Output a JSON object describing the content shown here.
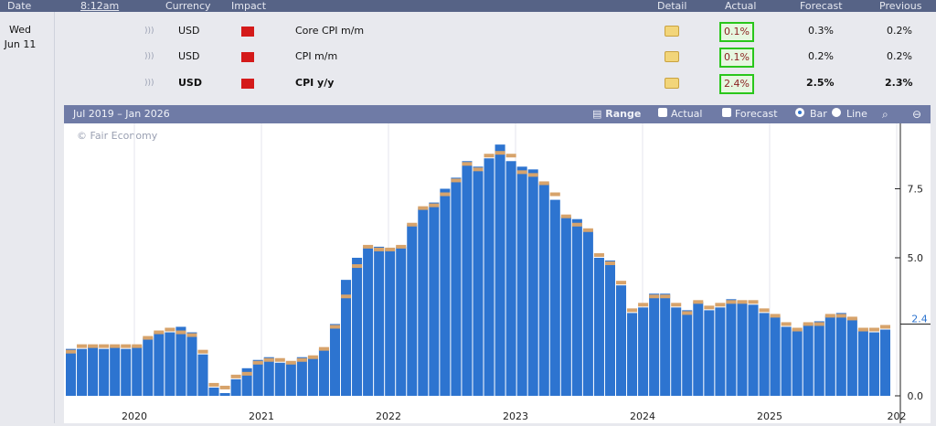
{
  "header": {
    "date": "Date",
    "time": "8:12am",
    "currency": "Currency",
    "impact": "Impact",
    "detail": "Detail",
    "actual": "Actual",
    "forecast": "Forecast",
    "previous": "Previous"
  },
  "day": {
    "weekday": "Wed",
    "date": "Jun 11"
  },
  "rows": [
    {
      "currency": "USD",
      "event": "Core CPI m/m",
      "actual": "0.1%",
      "forecast": "0.3%",
      "previous": "0.2%"
    },
    {
      "currency": "USD",
      "event": "CPI m/m",
      "actual": "0.1%",
      "forecast": "0.2%",
      "previous": "0.2%"
    },
    {
      "currency": "USD",
      "event": "CPI y/y",
      "actual": "2.4%",
      "forecast": "2.5%",
      "previous": "2.3%"
    }
  ],
  "chart_toolbar": {
    "range_text": "Jul 2019 – Jan 2026",
    "range_btn": "Range",
    "actual_label": "Actual",
    "forecast_label": "Forecast",
    "bar_label": "Bar",
    "line_label": "Line",
    "zoom_in_icon": "magnifier-icon",
    "zoom_out_icon": "zoom-out-icon"
  },
  "watermark": "© Fair Economy",
  "colors": {
    "actual": "#2d74d0",
    "forecast": "#d7a36b",
    "header": "#566386",
    "toolbar": "#6f7ba6",
    "highlight": "#29c61b"
  },
  "chart_data": {
    "type": "bar",
    "x_ticks": [
      "2020",
      "2021",
      "2022",
      "2023",
      "2024",
      "2025",
      "202"
    ],
    "y_ticks": [
      "0.0",
      "5.0",
      "7.5"
    ],
    "current_value_label": "2.4",
    "ylim": [
      0,
      9.8
    ],
    "series": [
      {
        "name": "Actual",
        "values": [
          1.7,
          1.7,
          1.8,
          1.7,
          1.8,
          1.7,
          1.8,
          2.1,
          2.3,
          2.3,
          2.5,
          2.3,
          1.5,
          0.3,
          0.1,
          0.6,
          1.0,
          1.3,
          1.4,
          1.2,
          1.2,
          1.4,
          1.4,
          1.7,
          2.6,
          4.2,
          5.0,
          5.4,
          5.4,
          5.3,
          5.4,
          6.2,
          6.8,
          7.0,
          7.5,
          7.9,
          8.5,
          8.3,
          8.6,
          9.1,
          8.5,
          8.3,
          8.2,
          7.7,
          7.1,
          6.5,
          6.4,
          6.0,
          5.0,
          4.9,
          4.0,
          3.0,
          3.2,
          3.7,
          3.7,
          3.2,
          3.1,
          3.4,
          3.1,
          3.2,
          3.5,
          3.4,
          3.3,
          3.0,
          2.9,
          2.5,
          2.4,
          2.6,
          2.7,
          2.9,
          3.0,
          2.8,
          2.4,
          2.3,
          2.4
        ]
      },
      {
        "name": "Forecast",
        "values": [
          1.6,
          1.8,
          1.8,
          1.8,
          1.8,
          1.8,
          1.8,
          2.1,
          2.3,
          2.4,
          2.3,
          2.2,
          1.6,
          0.4,
          0.3,
          0.7,
          0.8,
          1.2,
          1.3,
          1.3,
          1.2,
          1.3,
          1.4,
          1.7,
          2.5,
          3.6,
          4.7,
          5.4,
          5.3,
          5.3,
          5.4,
          6.2,
          6.8,
          6.9,
          7.3,
          7.8,
          8.4,
          8.2,
          8.7,
          8.8,
          8.7,
          8.1,
          8.0,
          7.7,
          7.3,
          6.5,
          6.2,
          6.0,
          5.1,
          4.8,
          4.1,
          3.1,
          3.3,
          3.6,
          3.6,
          3.3,
          3.0,
          3.4,
          3.2,
          3.3,
          3.4,
          3.4,
          3.4,
          3.1,
          2.9,
          2.6,
          2.4,
          2.6,
          2.6,
          2.9,
          2.9,
          2.8,
          2.4,
          2.4,
          2.5
        ]
      }
    ]
  }
}
